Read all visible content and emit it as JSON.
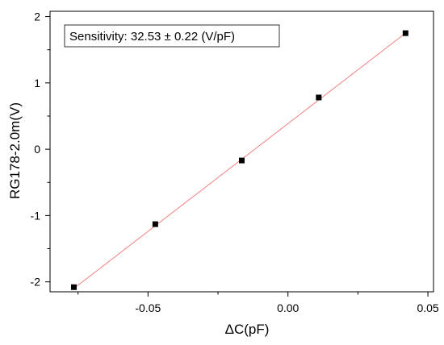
{
  "chart_data": {
    "type": "scatter",
    "xlabel": "ΔC(pF)",
    "ylabel": "RG178-2.0m(V)",
    "xlim": [
      -0.085,
      0.052
    ],
    "ylim": [
      -2.15,
      2.08
    ],
    "x_ticks": [
      -0.05,
      0.0,
      0.05
    ],
    "x_tick_labels": [
      "-0.05",
      "0.00",
      "0.05"
    ],
    "x_minor_ticks": [
      -0.075,
      -0.025,
      0.025
    ],
    "y_ticks": [
      -2,
      -1,
      0,
      1,
      2
    ],
    "y_tick_labels": [
      "-2",
      "-1",
      "0",
      "1",
      "2"
    ],
    "y_minor_ticks": [
      -1.5,
      -0.5,
      0.5,
      1.5
    ],
    "grid": false,
    "points": {
      "x": [
        -0.0765,
        -0.0474,
        -0.0165,
        0.011,
        0.042
      ],
      "y": [
        -2.08,
        -1.13,
        -0.17,
        0.78,
        1.75
      ]
    },
    "fit_line": {
      "x": [
        -0.0765,
        0.042
      ],
      "y": [
        -2.1,
        1.75
      ],
      "color": "#f08080"
    },
    "marker_color": "#000000",
    "annotation": "Sensitivity: 32.53 ± 0.22 (V/pF)"
  }
}
